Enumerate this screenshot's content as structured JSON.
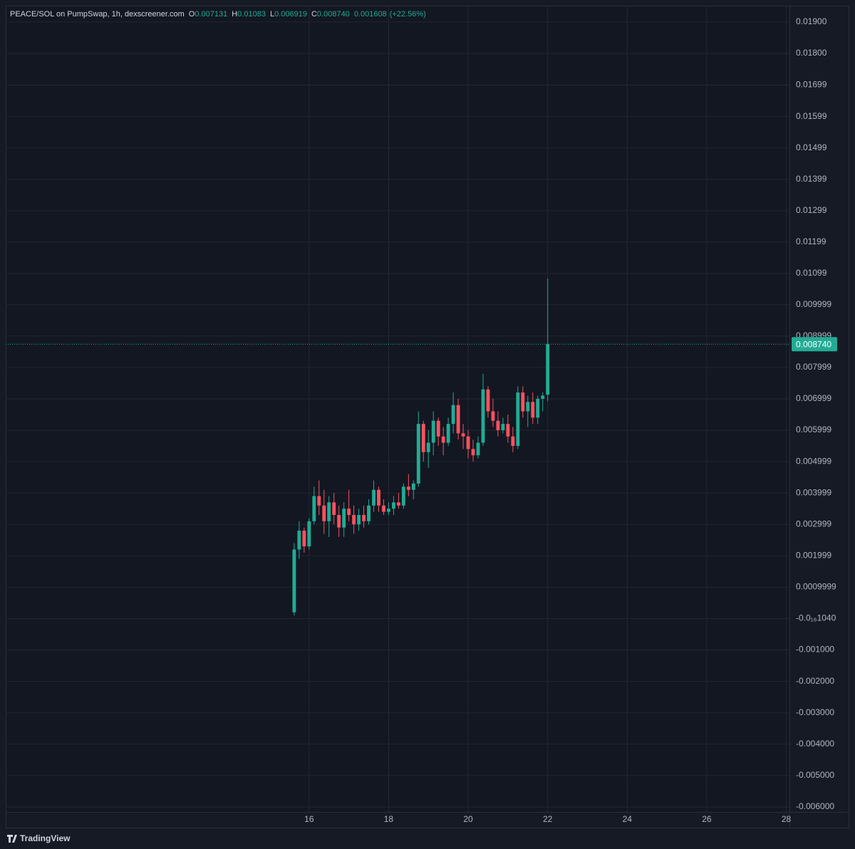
{
  "chart_data": {
    "type": "candlestick",
    "title": "PEACE/SOL on PumpSwap, 1h, dexscreener.com",
    "header": {
      "o_key": "O",
      "o": "0.007131",
      "h_key": "H",
      "h": "0.01083",
      "l_key": "L",
      "l": "0.006919",
      "c_key": "C",
      "c": "0.008740",
      "change": "0.001608",
      "change_pct": "(+22.56%)"
    },
    "brand": "TradingView",
    "up_color": "#22ab94",
    "down_color": "#f7525f",
    "grid": true,
    "last_price": {
      "value": 0.00874,
      "label": "0.008740"
    },
    "xlim": [
      8.37,
      28.08
    ],
    "xticks": [
      16,
      18,
      20,
      22,
      24,
      26,
      28
    ],
    "ylim": [
      -0.00616,
      0.01952
    ],
    "yticks": [
      {
        "value": 0.019,
        "label": "0.01900"
      },
      {
        "value": 0.018,
        "label": "0.01800"
      },
      0.01699,
      0.01599,
      0.01499,
      0.01399,
      0.01299,
      0.01199,
      0.01099,
      0.009999,
      0.008999,
      0.007999,
      0.006999,
      0.005999,
      0.004999,
      0.003999,
      0.002999,
      0.001999,
      0.0009999,
      {
        "value": -1.04e-17,
        "label": "-0.0₁₆1040"
      },
      {
        "value": -0.001,
        "label": "-0.001000"
      },
      {
        "value": -0.002,
        "label": "-0.002000"
      },
      {
        "value": -0.003,
        "label": "-0.003000"
      },
      {
        "value": -0.004,
        "label": "-0.004000"
      },
      {
        "value": -0.005,
        "label": "-0.005000"
      },
      {
        "value": -0.006,
        "label": "-0.006000"
      }
    ],
    "x": [
      15.625,
      15.75,
      15.875,
      16.0,
      16.125,
      16.25,
      16.375,
      16.5,
      16.625,
      16.75,
      16.875,
      17.0,
      17.125,
      17.25,
      17.375,
      17.5,
      17.625,
      17.75,
      17.875,
      18.0,
      18.125,
      18.25,
      18.375,
      18.5,
      18.625,
      18.75,
      18.875,
      19.0,
      19.125,
      19.25,
      19.375,
      19.5,
      19.625,
      19.75,
      19.875,
      20.0,
      20.125,
      20.25,
      20.375,
      20.5,
      20.625,
      20.75,
      20.875,
      21.0,
      21.125,
      21.25,
      21.375,
      21.5,
      21.625,
      21.75,
      21.875,
      22.0
    ],
    "open": [
      0.0002,
      0.0022,
      0.0028,
      0.0023,
      0.0031,
      0.0039,
      0.0036,
      0.0031,
      0.0037,
      0.0033,
      0.0029,
      0.0035,
      0.0033,
      0.003,
      0.0033,
      0.0031,
      0.0036,
      0.0041,
      0.0036,
      0.0034,
      0.0035,
      0.0037,
      0.0036,
      0.0042,
      0.0041,
      0.0043,
      0.0062,
      0.0053,
      0.0056,
      0.0063,
      0.0058,
      0.0056,
      0.0062,
      0.0068,
      0.0059,
      0.0058,
      0.0054,
      0.0052,
      0.0056,
      0.0073,
      0.0066,
      0.0063,
      0.006,
      0.0062,
      0.0058,
      0.0055,
      0.0072,
      0.0066,
      0.0069,
      0.0064,
      0.007,
      0.007131
    ],
    "high": [
      0.0024,
      0.0031,
      0.0029,
      0.0032,
      0.0042,
      0.0044,
      0.0041,
      0.0039,
      0.004,
      0.0036,
      0.0037,
      0.0041,
      0.0036,
      0.0035,
      0.0036,
      0.0038,
      0.0044,
      0.0042,
      0.0038,
      0.0037,
      0.0039,
      0.004,
      0.0043,
      0.0046,
      0.0044,
      0.0066,
      0.0063,
      0.006,
      0.0066,
      0.0064,
      0.0061,
      0.0064,
      0.0072,
      0.007,
      0.0062,
      0.006,
      0.0057,
      0.0058,
      0.0078,
      0.0074,
      0.007,
      0.0066,
      0.0064,
      0.0065,
      0.0061,
      0.0074,
      0.0074,
      0.0071,
      0.0072,
      0.0071,
      0.0072,
      0.01083
    ],
    "low": [
      0.0001,
      0.0019,
      0.0021,
      0.0022,
      0.003,
      0.0033,
      0.0027,
      0.0026,
      0.003,
      0.0026,
      0.0026,
      0.0031,
      0.0027,
      0.0028,
      0.0029,
      0.003,
      0.0034,
      0.0034,
      0.0033,
      0.0033,
      0.0033,
      0.0035,
      0.0035,
      0.0039,
      0.0038,
      0.0042,
      0.005,
      0.0048,
      0.0052,
      0.0055,
      0.0052,
      0.0055,
      0.0059,
      0.0057,
      0.0054,
      0.0051,
      0.005,
      0.0051,
      0.0055,
      0.0064,
      0.0061,
      0.0058,
      0.0059,
      0.0056,
      0.0053,
      0.0054,
      0.0064,
      0.0061,
      0.0062,
      0.0062,
      0.0066,
      0.006919
    ],
    "close": [
      0.0022,
      0.0028,
      0.0023,
      0.0031,
      0.0039,
      0.0036,
      0.0031,
      0.0037,
      0.0033,
      0.0029,
      0.0035,
      0.0033,
      0.003,
      0.0033,
      0.0031,
      0.0036,
      0.0041,
      0.0036,
      0.0034,
      0.0035,
      0.0037,
      0.0036,
      0.0042,
      0.0041,
      0.0043,
      0.0062,
      0.0053,
      0.0056,
      0.0063,
      0.0058,
      0.0056,
      0.0062,
      0.0068,
      0.0059,
      0.0058,
      0.0054,
      0.0052,
      0.0056,
      0.0073,
      0.0066,
      0.0063,
      0.006,
      0.0062,
      0.0058,
      0.0055,
      0.0072,
      0.0066,
      0.0069,
      0.0064,
      0.007,
      0.0071,
      0.00874
    ]
  }
}
